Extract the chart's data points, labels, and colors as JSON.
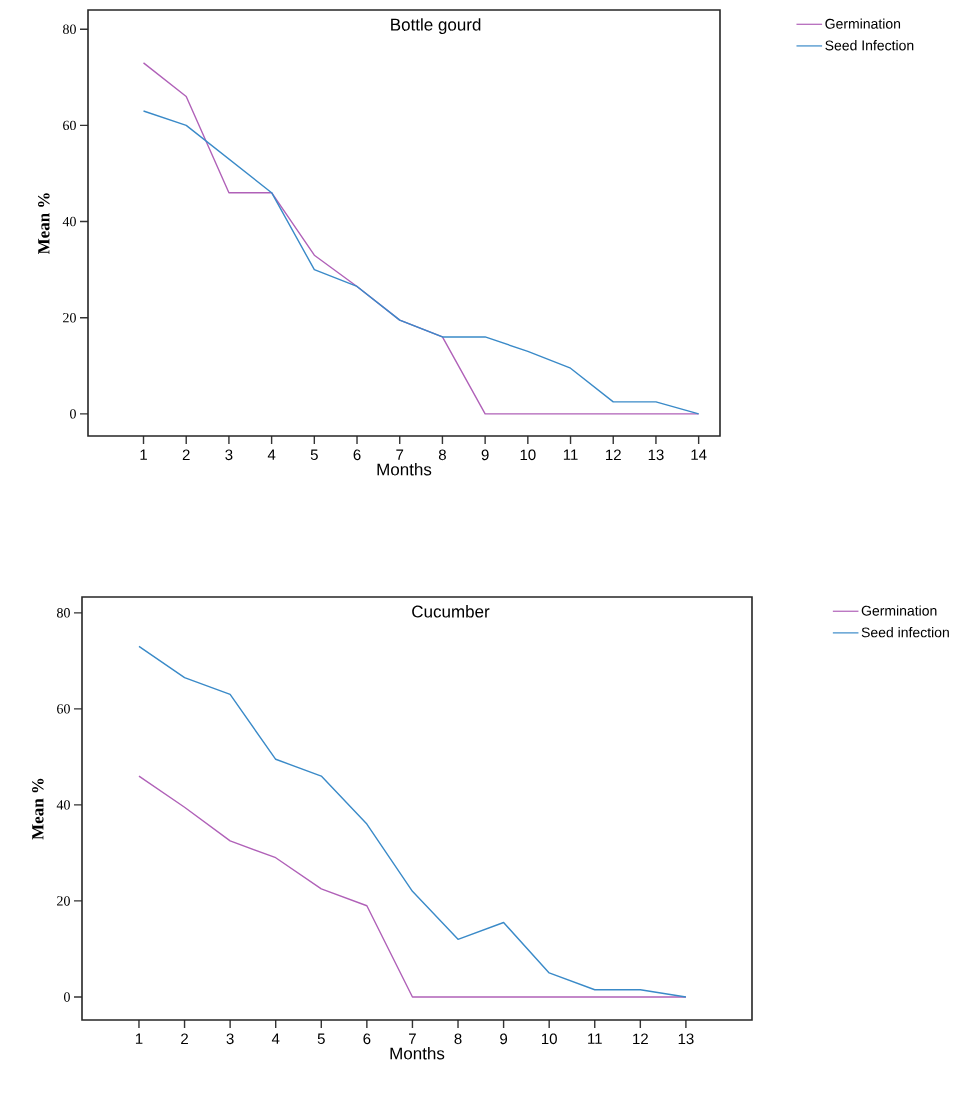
{
  "chart_data": [
    {
      "type": "line",
      "title": "Bottle gourd",
      "xlabel": "Months",
      "ylabel": "Mean %",
      "x": [
        1,
        2,
        3,
        4,
        5,
        6,
        7,
        8,
        9,
        10,
        11,
        12,
        13,
        14
      ],
      "xlim": [
        -0.3,
        14.5
      ],
      "xticks": [
        1,
        2,
        3,
        4,
        5,
        6,
        7,
        8,
        9,
        10,
        11,
        12,
        13,
        14
      ],
      "ylim": [
        -4.6,
        84
      ],
      "yticks": [
        0,
        20,
        40,
        60,
        80
      ],
      "legend": "top right",
      "series": [
        {
          "name": "Germination",
          "color": "#b061b8",
          "values": [
            73,
            66,
            46,
            46,
            33,
            26.5,
            19.5,
            16,
            0,
            0,
            0,
            0,
            0,
            0
          ]
        },
        {
          "name": "Seed Infection",
          "color": "#3a8ac8",
          "values": [
            63,
            60,
            53,
            46,
            30,
            26.5,
            19.5,
            16,
            16,
            13,
            9.5,
            2.5,
            2.5,
            0
          ]
        }
      ]
    },
    {
      "type": "line",
      "title": "Cucumber",
      "xlabel": "Months",
      "ylabel": "Mean %",
      "x": [
        1,
        2,
        3,
        4,
        5,
        6,
        7,
        8,
        9,
        10,
        11,
        12,
        13
      ],
      "xlim": [
        -0.25,
        14.45
      ],
      "xticks": [
        1,
        2,
        3,
        4,
        5,
        6,
        7,
        8,
        9,
        10,
        11,
        12,
        13
      ],
      "ylim": [
        -4.8,
        83.3
      ],
      "yticks": [
        0,
        20,
        40,
        60,
        80
      ],
      "legend": "top right",
      "series": [
        {
          "name": "Germination",
          "color": "#b061b8",
          "values": [
            46,
            39.5,
            32.5,
            29,
            22.5,
            19,
            0,
            0,
            0,
            0,
            0,
            0,
            0
          ]
        },
        {
          "name": "Seed infection",
          "color": "#3a8ac8",
          "values": [
            73,
            66.5,
            63,
            49.5,
            46,
            36,
            22,
            12,
            15.5,
            5,
            1.5,
            1.5,
            0
          ]
        }
      ]
    }
  ]
}
